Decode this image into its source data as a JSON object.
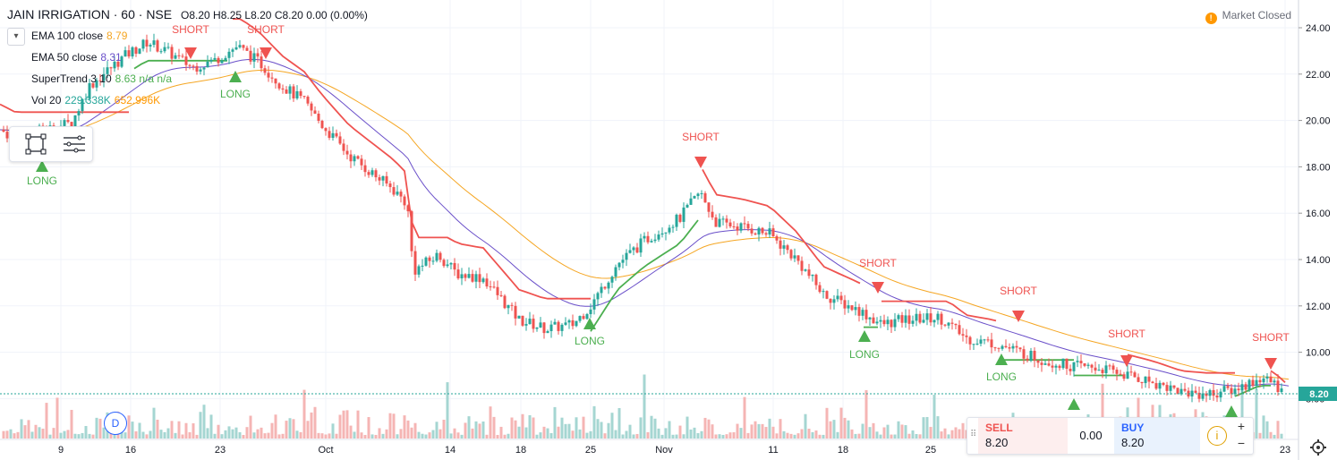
{
  "header": {
    "title": "JAIN IRRIGATION · 60 · NSE",
    "ohlc": [
      {
        "label": "O",
        "value": "8.20"
      },
      {
        "label": "H",
        "value": "8.25"
      },
      {
        "label": "L",
        "value": "8.20"
      },
      {
        "label": "C",
        "value": "8.20"
      },
      {
        "label": "",
        "value": "0.00 (0.00%)"
      }
    ],
    "market_status": "Market Closed"
  },
  "indicators": [
    {
      "name": "EMA 100 close",
      "value": "8.79",
      "color": "#f5a623"
    },
    {
      "name": "EMA 50 close",
      "value": "8.31",
      "color": "#6a4fc9"
    },
    {
      "name": "SuperTrend 3 10",
      "value": "8.63 n/a n/a",
      "color": "#4caf50"
    },
    {
      "name": "Vol 20",
      "value": "229.338K",
      "value2": "652.996K",
      "color": "#26a69a",
      "color2": "#ff9800"
    }
  ],
  "price_axis": {
    "ticks": [
      "24.00",
      "22.00",
      "20.00",
      "18.00",
      "16.00",
      "14.00",
      "12.00",
      "10.00",
      "8.00"
    ],
    "current_price": "8.20",
    "current_price_color": "#26a69a"
  },
  "time_axis": {
    "ticks": [
      "9",
      "16",
      "23",
      "Oct",
      "14",
      "18",
      "25",
      "Nov",
      "11",
      "18",
      "25",
      "23"
    ]
  },
  "signals": {
    "short_label": "SHORT",
    "long_label": "LONG",
    "short_color": "#ef5350",
    "long_color": "#4caf50"
  },
  "trade_panel": {
    "sell_label": "SELL",
    "sell_price": "8.20",
    "spread": "0.00",
    "buy_label": "BUY",
    "buy_price": "8.20",
    "plus": "+",
    "minus": "−",
    "info": "i"
  },
  "badge": "D",
  "colors": {
    "up": "#26a69a",
    "down": "#ef5350",
    "supertrend_up": "#4caf50",
    "supertrend_down": "#ef5350",
    "ema50": "#6a4fc9",
    "ema100": "#f5a623"
  },
  "chart_data": {
    "type": "candlestick",
    "title": "JAIN IRRIGATION · 60 · NSE",
    "ylim": [
      8,
      24
    ],
    "close_series": [
      {
        "x": "9",
        "close": 19.5
      },
      {
        "x": "16",
        "close": 22.8
      },
      {
        "x": "23",
        "close": 22.5
      },
      {
        "x": "Oct",
        "close": 21.0
      },
      {
        "x": "14",
        "close": 14.0
      },
      {
        "x": "18",
        "close": 11.4
      },
      {
        "x": "25",
        "close": 12.0
      },
      {
        "x": "Nov",
        "close": 16.0
      },
      {
        "x": "11",
        "close": 15.0
      },
      {
        "x": "18",
        "close": 11.5
      },
      {
        "x": "25",
        "close": 11.2
      },
      {
        "x": "23",
        "close": 8.2
      }
    ],
    "signals": [
      {
        "type": "LONG",
        "x": "9",
        "price": 18.5
      },
      {
        "type": "SHORT",
        "x": "20",
        "price": 22.7
      },
      {
        "type": "LONG",
        "x": "24",
        "price": 22.0
      },
      {
        "type": "SHORT",
        "x": "27",
        "price": 22.7
      },
      {
        "type": "LONG",
        "x": "25",
        "price": 12.0
      },
      {
        "type": "SHORT",
        "x": "Nov",
        "price": 18.0
      },
      {
        "type": "SHORT",
        "x": "19",
        "price": 12.8
      },
      {
        "type": "LONG",
        "x": "18",
        "price": 10.5
      },
      {
        "type": "SHORT",
        "x": "26",
        "price": 11.5
      },
      {
        "type": "LONG",
        "x": "27",
        "price": 10.0
      },
      {
        "type": "SHORT",
        "x": "Dec",
        "price": 9.9
      },
      {
        "type": "LONG",
        "x": "Dec",
        "price": 8.3
      },
      {
        "type": "LONG",
        "x": "Dec",
        "price": 8.1
      },
      {
        "type": "SHORT",
        "x": "23",
        "price": 9.5
      }
    ]
  }
}
